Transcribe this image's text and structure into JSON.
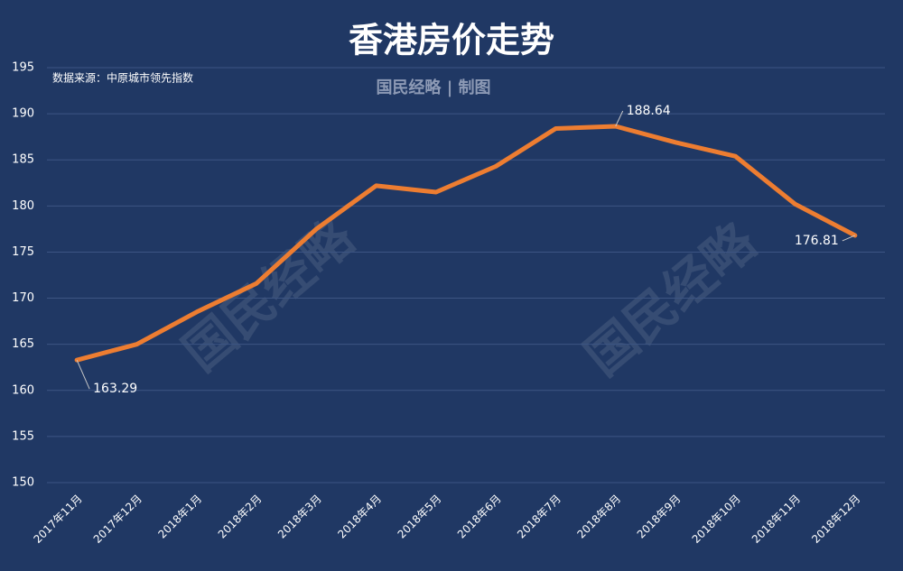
{
  "chart_data": {
    "type": "line",
    "title": "香港房价走势",
    "subtitle": "国民经略 | 制图",
    "source": "数据来源：中原城市领先指数",
    "watermark": "国民经略",
    "categories": [
      "2017年11月",
      "2017年12月",
      "2018年1月",
      "2018年2月",
      "2018年3月",
      "2018年4月",
      "2018年5月",
      "2018年6月",
      "2018年7月",
      "2018年8月",
      "2018年9月",
      "2018年10月",
      "2018年11月",
      "2018年12月"
    ],
    "values": [
      163.29,
      165.0,
      168.5,
      171.6,
      177.5,
      182.2,
      181.5,
      184.3,
      188.4,
      188.64,
      186.9,
      185.4,
      180.2,
      176.81
    ],
    "color": "#ed7d31",
    "ylim": [
      150,
      195
    ],
    "yticks": [
      150,
      155,
      160,
      165,
      170,
      175,
      180,
      185,
      190,
      195
    ],
    "grid": true
  }
}
